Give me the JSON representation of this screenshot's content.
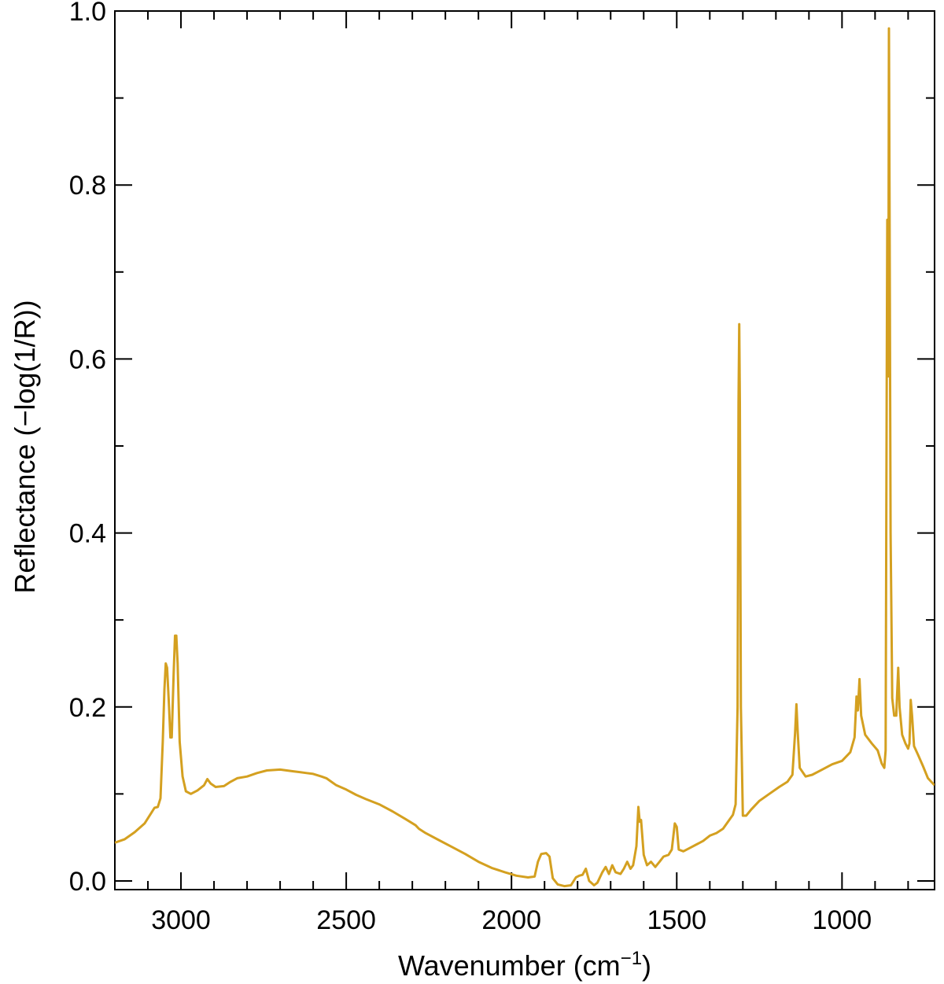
{
  "chart_data": {
    "type": "line",
    "xlabel": "Wavenumber (cm",
    "xlabel_sup": "−1",
    "xlabel_end": ")",
    "ylabel": "Reflectance (−log(1/R))",
    "xlim": [
      3200,
      720
    ],
    "ylim": [
      -0.01,
      1.0
    ],
    "x_reversed": true,
    "grid": false,
    "line_color": "#D4A020",
    "x_major_ticks": [
      3000,
      2500,
      2000,
      1500,
      1000
    ],
    "x_tick_labels": [
      "3000",
      "2500",
      "2000",
      "1500",
      "1000"
    ],
    "x_minor_ticks": [
      3100,
      2900,
      2800,
      2700,
      2600,
      2400,
      2300,
      2200,
      2100,
      1900,
      1800,
      1700,
      1600,
      1400,
      1300,
      1200,
      1100,
      900,
      800
    ],
    "y_major_ticks": [
      0.0,
      0.2,
      0.4,
      0.6,
      0.8,
      1.0
    ],
    "y_tick_labels": [
      "0.0",
      "0.2",
      "0.4",
      "0.6",
      "0.8",
      "1.0"
    ],
    "y_minor_ticks": [
      0.1,
      0.3,
      0.5,
      0.7,
      0.9
    ],
    "series": [
      {
        "points": [
          [
            3200,
            0.044
          ],
          [
            3170,
            0.048
          ],
          [
            3140,
            0.056
          ],
          [
            3110,
            0.066
          ],
          [
            3090,
            0.078
          ],
          [
            3080,
            0.084
          ],
          [
            3070,
            0.085
          ],
          [
            3062,
            0.095
          ],
          [
            3055,
            0.16
          ],
          [
            3050,
            0.22
          ],
          [
            3046,
            0.25
          ],
          [
            3042,
            0.245
          ],
          [
            3036,
            0.2
          ],
          [
            3032,
            0.165
          ],
          [
            3028,
            0.165
          ],
          [
            3022,
            0.24
          ],
          [
            3018,
            0.282
          ],
          [
            3014,
            0.282
          ],
          [
            3010,
            0.25
          ],
          [
            3004,
            0.16
          ],
          [
            2995,
            0.12
          ],
          [
            2985,
            0.103
          ],
          [
            2970,
            0.1
          ],
          [
            2950,
            0.104
          ],
          [
            2930,
            0.11
          ],
          [
            2920,
            0.117
          ],
          [
            2910,
            0.112
          ],
          [
            2895,
            0.108
          ],
          [
            2870,
            0.109
          ],
          [
            2850,
            0.114
          ],
          [
            2830,
            0.118
          ],
          [
            2800,
            0.12
          ],
          [
            2770,
            0.124
          ],
          [
            2740,
            0.127
          ],
          [
            2700,
            0.128
          ],
          [
            2660,
            0.126
          ],
          [
            2620,
            0.124
          ],
          [
            2600,
            0.123
          ],
          [
            2575,
            0.12
          ],
          [
            2560,
            0.118
          ],
          [
            2545,
            0.114
          ],
          [
            2530,
            0.11
          ],
          [
            2500,
            0.105
          ],
          [
            2470,
            0.099
          ],
          [
            2440,
            0.094
          ],
          [
            2400,
            0.088
          ],
          [
            2360,
            0.08
          ],
          [
            2320,
            0.071
          ],
          [
            2290,
            0.064
          ],
          [
            2280,
            0.06
          ],
          [
            2260,
            0.055
          ],
          [
            2220,
            0.047
          ],
          [
            2180,
            0.039
          ],
          [
            2140,
            0.031
          ],
          [
            2100,
            0.022
          ],
          [
            2060,
            0.015
          ],
          [
            2020,
            0.01
          ],
          [
            1985,
            0.006
          ],
          [
            1950,
            0.004
          ],
          [
            1930,
            0.005
          ],
          [
            1920,
            0.022
          ],
          [
            1910,
            0.031
          ],
          [
            1895,
            0.032
          ],
          [
            1885,
            0.028
          ],
          [
            1875,
            0.003
          ],
          [
            1860,
            -0.004
          ],
          [
            1840,
            -0.006
          ],
          [
            1820,
            -0.005
          ],
          [
            1805,
            0.004
          ],
          [
            1795,
            0.006
          ],
          [
            1785,
            0.007
          ],
          [
            1775,
            0.014
          ],
          [
            1765,
            0.0
          ],
          [
            1750,
            -0.005
          ],
          [
            1740,
            -0.002
          ],
          [
            1725,
            0.01
          ],
          [
            1715,
            0.016
          ],
          [
            1705,
            0.008
          ],
          [
            1695,
            0.018
          ],
          [
            1685,
            0.01
          ],
          [
            1670,
            0.008
          ],
          [
            1660,
            0.014
          ],
          [
            1650,
            0.022
          ],
          [
            1640,
            0.014
          ],
          [
            1632,
            0.018
          ],
          [
            1622,
            0.04
          ],
          [
            1616,
            0.085
          ],
          [
            1612,
            0.068
          ],
          [
            1608,
            0.07
          ],
          [
            1600,
            0.03
          ],
          [
            1590,
            0.018
          ],
          [
            1578,
            0.022
          ],
          [
            1565,
            0.016
          ],
          [
            1552,
            0.022
          ],
          [
            1540,
            0.028
          ],
          [
            1525,
            0.03
          ],
          [
            1515,
            0.036
          ],
          [
            1506,
            0.066
          ],
          [
            1500,
            0.062
          ],
          [
            1494,
            0.036
          ],
          [
            1480,
            0.034
          ],
          [
            1460,
            0.038
          ],
          [
            1440,
            0.042
          ],
          [
            1420,
            0.046
          ],
          [
            1400,
            0.052
          ],
          [
            1380,
            0.055
          ],
          [
            1360,
            0.06
          ],
          [
            1345,
            0.068
          ],
          [
            1330,
            0.076
          ],
          [
            1322,
            0.088
          ],
          [
            1316,
            0.2
          ],
          [
            1313,
            0.55
          ],
          [
            1311,
            0.64
          ],
          [
            1309,
            0.55
          ],
          [
            1306,
            0.2
          ],
          [
            1300,
            0.075
          ],
          [
            1290,
            0.075
          ],
          [
            1275,
            0.082
          ],
          [
            1250,
            0.092
          ],
          [
            1220,
            0.1
          ],
          [
            1190,
            0.108
          ],
          [
            1165,
            0.114
          ],
          [
            1150,
            0.122
          ],
          [
            1142,
            0.17
          ],
          [
            1138,
            0.203
          ],
          [
            1134,
            0.17
          ],
          [
            1128,
            0.13
          ],
          [
            1110,
            0.12
          ],
          [
            1090,
            0.122
          ],
          [
            1060,
            0.128
          ],
          [
            1030,
            0.134
          ],
          [
            1000,
            0.138
          ],
          [
            975,
            0.148
          ],
          [
            962,
            0.165
          ],
          [
            956,
            0.212
          ],
          [
            952,
            0.196
          ],
          [
            947,
            0.232
          ],
          [
            942,
            0.19
          ],
          [
            930,
            0.168
          ],
          [
            910,
            0.158
          ],
          [
            892,
            0.15
          ],
          [
            880,
            0.135
          ],
          [
            872,
            0.13
          ],
          [
            868,
            0.15
          ],
          [
            865,
            0.55
          ],
          [
            863,
            0.76
          ],
          [
            861,
            0.6
          ],
          [
            860,
            0.58
          ],
          [
            858,
            0.98
          ],
          [
            856,
            0.75
          ],
          [
            853,
            0.4
          ],
          [
            848,
            0.21
          ],
          [
            842,
            0.19
          ],
          [
            836,
            0.19
          ],
          [
            830,
            0.245
          ],
          [
            826,
            0.2
          ],
          [
            818,
            0.168
          ],
          [
            808,
            0.158
          ],
          [
            800,
            0.152
          ],
          [
            796,
            0.158
          ],
          [
            792,
            0.208
          ],
          [
            788,
            0.19
          ],
          [
            782,
            0.155
          ],
          [
            770,
            0.145
          ],
          [
            755,
            0.132
          ],
          [
            740,
            0.118
          ],
          [
            725,
            0.112
          ],
          [
            720,
            0.11
          ]
        ]
      }
    ]
  }
}
